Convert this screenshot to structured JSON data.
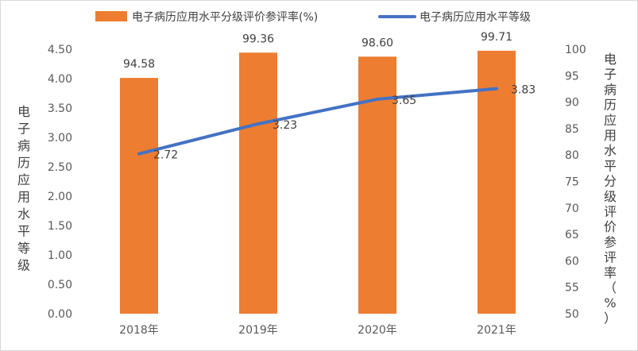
{
  "chart_data": {
    "type": "bar+line",
    "categories": [
      "2018年",
      "2019年",
      "2020年",
      "2021年"
    ],
    "series": [
      {
        "name": "电子病历应用水平分级评价参评率(%)",
        "kind": "bar",
        "axis": "right",
        "color": "#ED7D31",
        "values": [
          94.58,
          99.36,
          98.6,
          99.71
        ],
        "labels": [
          "94.58",
          "99.36",
          "98.60",
          "99.71"
        ]
      },
      {
        "name": "电子病历应用水平等级",
        "kind": "line",
        "axis": "left",
        "color": "#4472C4",
        "values": [
          2.72,
          3.23,
          3.65,
          3.83
        ],
        "labels": [
          "2.72",
          "3.23",
          "3.65",
          "3.83"
        ]
      }
    ],
    "y_left": {
      "title": "电子病历应用水平等级",
      "ylim": [
        0,
        4.5
      ],
      "ticks": [
        "0.00",
        "0.50",
        "1.00",
        "1.50",
        "2.00",
        "2.50",
        "3.00",
        "3.50",
        "4.00",
        "4.50"
      ]
    },
    "y_right": {
      "title": "电子病历应用水平分级评价参评率（%）",
      "ylim": [
        50,
        100
      ],
      "ticks": [
        "50",
        "55",
        "60",
        "65",
        "70",
        "75",
        "80",
        "85",
        "90",
        "95",
        "100"
      ]
    },
    "legend": {
      "position": "top"
    },
    "grid": false
  }
}
